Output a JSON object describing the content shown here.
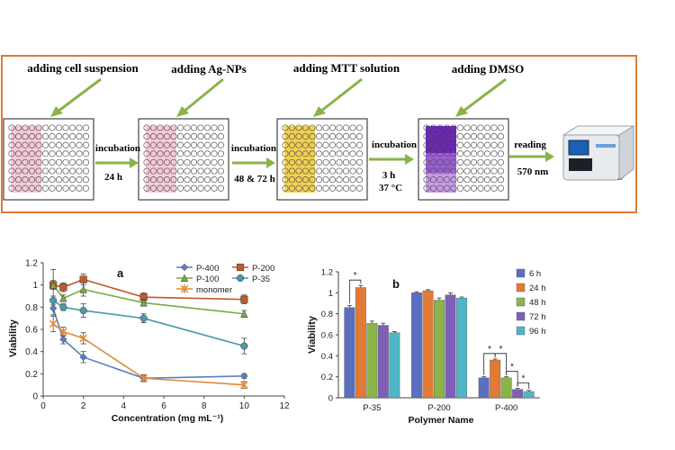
{
  "workflow": {
    "step_labels": [
      "adding cell suspension",
      "adding Ag-NPs",
      "adding MTT solution",
      "adding DMSO"
    ],
    "transitions": [
      {
        "label": "incubation",
        "detail": "24 h",
        "detail2": ""
      },
      {
        "label": "incubation",
        "detail": "48 & 72 h",
        "detail2": ""
      },
      {
        "label": "incubation",
        "detail": "3 h",
        "detail2": "37 °C"
      },
      {
        "label": "reading",
        "detail": "570 nm",
        "detail2": ""
      }
    ],
    "well_colors": [
      "#f5c4d6",
      "#f5c4d6",
      "#f2cc3c",
      "#8a3fd0"
    ],
    "colors": {
      "frame": "#e07a35",
      "arrow": "#8ab34a"
    }
  },
  "chart_data": [
    {
      "type": "line",
      "panel_label": "a",
      "title": "",
      "xlabel": "Concentration (mg mL⁻¹)",
      "ylabel": "Viability",
      "xlim": [
        0,
        12
      ],
      "ylim": [
        0,
        1.2
      ],
      "x_ticks": [
        "0",
        "2",
        "4",
        "6",
        "8",
        "10",
        "12"
      ],
      "y_ticks": [
        "0",
        "0.2",
        "0.4",
        "0.6",
        "0.8",
        "1",
        "1.2"
      ],
      "legend_position": "top-right",
      "series": [
        {
          "name": "P-400",
          "color": "#5b7fc1",
          "marker": "diamond",
          "x": [
            0.5,
            1,
            2,
            5,
            10
          ],
          "values": [
            0.79,
            0.51,
            0.35,
            0.16,
            0.18
          ],
          "err": [
            0.06,
            0.04,
            0.05,
            0.03,
            0.02
          ]
        },
        {
          "name": "P-200",
          "color": "#c25a2a",
          "marker": "square",
          "x": [
            0.5,
            1,
            2,
            5,
            10
          ],
          "values": [
            1.0,
            0.98,
            1.05,
            0.89,
            0.87
          ],
          "err": [
            0.14,
            0.04,
            0.05,
            0.04,
            0.04
          ]
        },
        {
          "name": "P-100",
          "color": "#7aaa44",
          "marker": "triangle",
          "x": [
            0.5,
            1,
            2,
            5,
            10
          ],
          "values": [
            1.0,
            0.88,
            0.96,
            0.84,
            0.74
          ],
          "err": [
            0.04,
            0.03,
            0.06,
            0.03,
            0.03
          ]
        },
        {
          "name": "P-35",
          "color": "#4a9aa8",
          "marker": "circle",
          "x": [
            0.5,
            1,
            2,
            5,
            10
          ],
          "values": [
            0.86,
            0.8,
            0.77,
            0.7,
            0.45
          ],
          "err": [
            0.04,
            0.03,
            0.06,
            0.04,
            0.07
          ]
        },
        {
          "name": "monomer",
          "color": "#e08a3a",
          "marker": "star",
          "x": [
            0.5,
            1,
            2,
            5,
            10
          ],
          "values": [
            0.65,
            0.58,
            0.52,
            0.16,
            0.1
          ],
          "err": [
            0.07,
            0.04,
            0.05,
            0.03,
            0.03
          ]
        }
      ]
    },
    {
      "type": "bar",
      "panel_label": "b",
      "title": "",
      "xlabel": "Polymer Name",
      "ylabel": "Viability",
      "ylim": [
        0,
        1.2
      ],
      "y_ticks": [
        "0",
        "0.2",
        "0.4",
        "0.6",
        "0.8",
        "1",
        "1.2"
      ],
      "legend_position": "top-right",
      "categories": [
        "P-35",
        "P-200",
        "P-400"
      ],
      "series": [
        {
          "name": "6 h",
          "color": "#5b6fc0",
          "values": [
            0.86,
            1.0,
            0.19
          ],
          "err": [
            0.02,
            0.01,
            0.01
          ]
        },
        {
          "name": "24 h",
          "color": "#e07a35",
          "values": [
            1.05,
            1.02,
            0.36
          ],
          "err": [
            0.02,
            0.01,
            0.01
          ]
        },
        {
          "name": "48 h",
          "color": "#8ab34a",
          "values": [
            0.71,
            0.93,
            0.19
          ],
          "err": [
            0.02,
            0.02,
            0.01
          ]
        },
        {
          "name": "72 h",
          "color": "#7d5fb8",
          "values": [
            0.69,
            0.98,
            0.08
          ],
          "err": [
            0.02,
            0.02,
            0.01
          ]
        },
        {
          "name": "96 h",
          "color": "#4fb6c6",
          "values": [
            0.62,
            0.95,
            0.06
          ],
          "err": [
            0.01,
            0.01,
            0.01
          ]
        }
      ],
      "significance": "*"
    }
  ]
}
